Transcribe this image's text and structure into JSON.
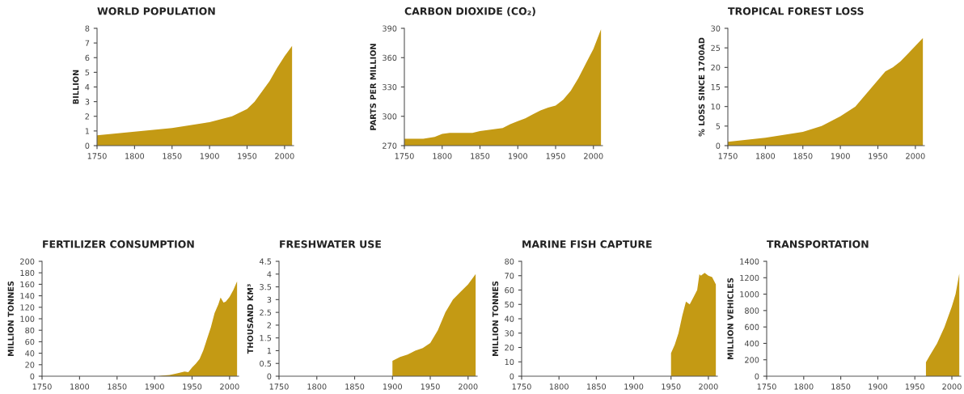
{
  "chart_data": [
    {
      "type": "area",
      "title": "WORLD POPULATION",
      "ylabel": "BILLION",
      "x": [
        1750,
        1800,
        1850,
        1900,
        1930,
        1950,
        1960,
        1970,
        1980,
        1990,
        2000,
        2010
      ],
      "series": [
        {
          "color": "#c49a14",
          "values": [
            0.7,
            0.95,
            1.2,
            1.6,
            2.0,
            2.5,
            3.0,
            3.7,
            4.4,
            5.3,
            6.1,
            6.8
          ]
        }
      ],
      "xlim": [
        1750,
        2012
      ],
      "xticks": [
        1750,
        1800,
        1850,
        1900,
        1950,
        2000
      ],
      "ylim": [
        0,
        8
      ],
      "yticks": [
        0,
        1,
        2,
        3,
        4,
        5,
        6,
        7,
        8
      ],
      "grid": false,
      "legend": false
    },
    {
      "type": "area",
      "title": "CARBON DIOXIDE (CO₂)",
      "ylabel": "PARTS PER MILLION",
      "x": [
        1750,
        1775,
        1790,
        1800,
        1810,
        1840,
        1850,
        1870,
        1880,
        1890,
        1900,
        1910,
        1920,
        1930,
        1940,
        1950,
        1960,
        1970,
        1980,
        1990,
        2000,
        2010
      ],
      "series": [
        {
          "color": "#c49a14",
          "values": [
            277,
            277,
            279,
            282,
            283,
            283,
            285,
            287,
            288,
            292,
            295,
            298,
            302,
            306,
            309,
            311,
            317,
            326,
            339,
            354,
            369,
            389
          ]
        }
      ],
      "xlim": [
        1750,
        2012
      ],
      "xticks": [
        1750,
        1800,
        1850,
        1900,
        1950,
        2000
      ],
      "ylim": [
        270,
        390
      ],
      "yticks": [
        270,
        300,
        330,
        360,
        390
      ],
      "grid": false,
      "legend": false
    },
    {
      "type": "area",
      "title": "TROPICAL FOREST LOSS",
      "ylabel": "% LOSS SINCE 1700AD",
      "x": [
        1750,
        1800,
        1850,
        1875,
        1900,
        1920,
        1940,
        1960,
        1970,
        1980,
        1990,
        2000,
        2010
      ],
      "series": [
        {
          "color": "#c49a14",
          "values": [
            1,
            2,
            3.5,
            5,
            7.5,
            10,
            14.5,
            19,
            20,
            21.5,
            23.5,
            25.5,
            27.5
          ]
        }
      ],
      "xlim": [
        1750,
        2012
      ],
      "xticks": [
        1750,
        1800,
        1850,
        1900,
        1950,
        2000
      ],
      "ylim": [
        0,
        30
      ],
      "yticks": [
        0,
        5,
        10,
        15,
        20,
        25,
        30
      ],
      "grid": false,
      "legend": false
    },
    {
      "type": "area",
      "title": "FERTILIZER CONSUMPTION",
      "ylabel": "MILLION TONNES",
      "x": [
        1905,
        1910,
        1920,
        1930,
        1940,
        1945,
        1950,
        1955,
        1960,
        1965,
        1970,
        1975,
        1980,
        1985,
        1988,
        1992,
        1995,
        2000,
        2005,
        2010
      ],
      "series": [
        {
          "color": "#c49a14",
          "values": [
            0,
            1,
            2,
            5,
            8,
            7,
            15,
            22,
            30,
            45,
            65,
            85,
            110,
            125,
            137,
            128,
            130,
            138,
            150,
            165
          ]
        }
      ],
      "xlim": [
        1750,
        2012
      ],
      "xticks": [
        1750,
        1800,
        1850,
        1900,
        1950,
        2000
      ],
      "ylim": [
        0,
        200
      ],
      "yticks": [
        0,
        20,
        40,
        60,
        80,
        100,
        120,
        140,
        160,
        180,
        200
      ],
      "grid": false,
      "legend": false
    },
    {
      "type": "area",
      "title": "FRESHWATER USE",
      "ylabel": "THOUSAND KM³",
      "x": [
        1900,
        1910,
        1920,
        1930,
        1940,
        1950,
        1960,
        1970,
        1980,
        1990,
        2000,
        2010
      ],
      "series": [
        {
          "color": "#c49a14",
          "values": [
            0.6,
            0.75,
            0.85,
            1.0,
            1.1,
            1.3,
            1.8,
            2.5,
            3.0,
            3.3,
            3.6,
            4.0
          ]
        }
      ],
      "xlim": [
        1750,
        2012
      ],
      "xticks": [
        1750,
        1800,
        1850,
        1900,
        1950,
        2000
      ],
      "ylim": [
        0,
        4.5
      ],
      "yticks": [
        0,
        0.5,
        1,
        1.5,
        2,
        2.5,
        3,
        3.5,
        4,
        4.5
      ],
      "grid": false,
      "legend": false
    },
    {
      "type": "area",
      "title": "MARINE FISH CAPTURE",
      "ylabel": "MILLION TONNES",
      "x": [
        1950,
        1955,
        1960,
        1965,
        1970,
        1975,
        1980,
        1985,
        1988,
        1990,
        1995,
        2000,
        2005,
        2010
      ],
      "series": [
        {
          "color": "#c49a14",
          "values": [
            16,
            22,
            30,
            42,
            52,
            50,
            55,
            60,
            71,
            70,
            72,
            70,
            69,
            64
          ]
        }
      ],
      "xlim": [
        1750,
        2012
      ],
      "xticks": [
        1750,
        1800,
        1850,
        1900,
        1950,
        2000
      ],
      "ylim": [
        0,
        80
      ],
      "yticks": [
        0,
        10,
        20,
        30,
        40,
        50,
        60,
        70,
        80
      ],
      "grid": false,
      "legend": false
    },
    {
      "type": "area",
      "title": "TRANSPORTATION",
      "ylabel": "MILLION VEHICLES",
      "x": [
        1965,
        1970,
        1980,
        1990,
        2000,
        2005,
        2010
      ],
      "series": [
        {
          "color": "#c49a14",
          "values": [
            170,
            250,
            400,
            600,
            850,
            1000,
            1250
          ]
        }
      ],
      "xlim": [
        1750,
        2012
      ],
      "xticks": [
        1750,
        1800,
        1850,
        1900,
        1950,
        2000
      ],
      "ylim": [
        0,
        1400
      ],
      "yticks": [
        0,
        200,
        400,
        600,
        800,
        1000,
        1200,
        1400
      ],
      "grid": false,
      "legend": false
    }
  ]
}
